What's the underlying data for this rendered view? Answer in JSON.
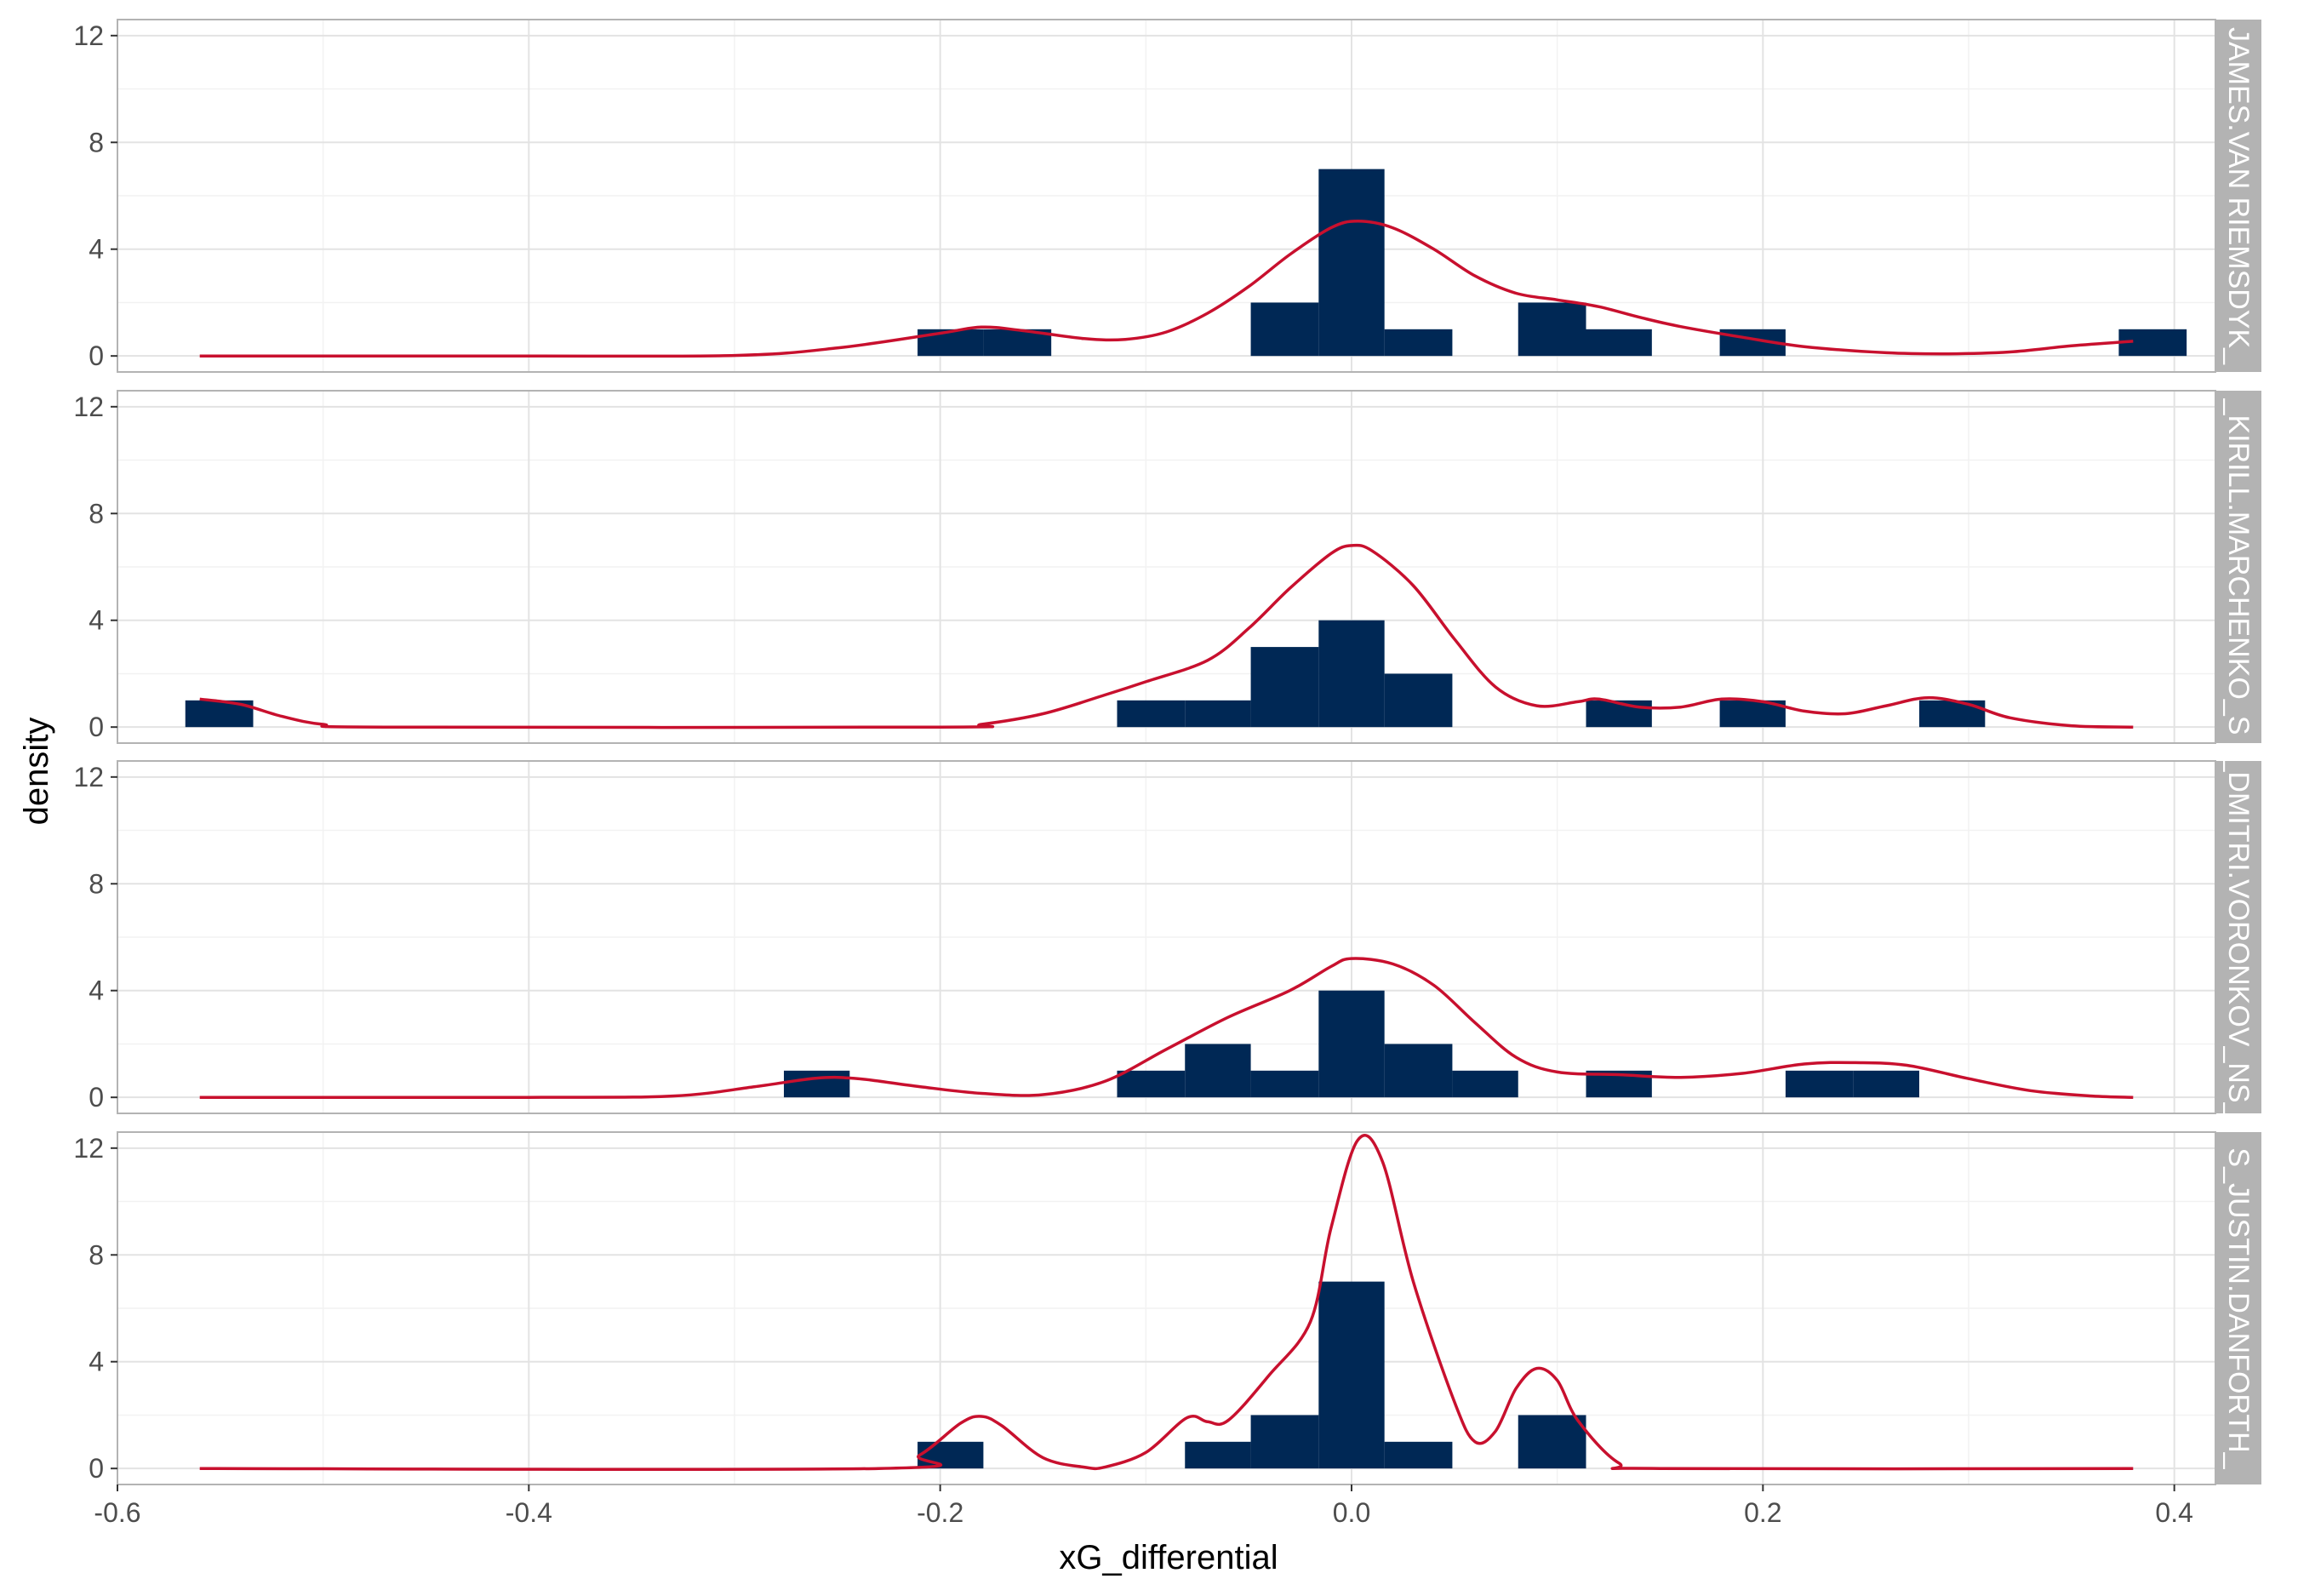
{
  "chart_data": {
    "type": "histogram",
    "xlabel": "xG_differential",
    "ylabel": "density",
    "xlim": [
      -0.6,
      0.42
    ],
    "ylim": [
      -0.6,
      12.6
    ],
    "x_ticks": [
      -0.6,
      -0.4,
      -0.2,
      0.0,
      0.2,
      0.4
    ],
    "x_tick_labels": [
      "-0.6",
      "-0.4",
      "-0.2",
      "0.0",
      "0.2",
      "0.4"
    ],
    "y_ticks": [
      0,
      4,
      8,
      12
    ],
    "y_tick_labels": [
      "0",
      "4",
      "8",
      "12"
    ],
    "bin_width": 0.0325,
    "bar_color": "#002855",
    "density_color": "#c8102e",
    "strip_color": "#b3b3b3",
    "grid": true,
    "panels": [
      {
        "label": "JAMES.VAN RIEMSDYK_",
        "bars": [
          {
            "x0": -0.211,
            "x1": -0.179,
            "y": 1
          },
          {
            "x0": -0.179,
            "x1": -0.146,
            "y": 1
          },
          {
            "x0": -0.049,
            "x1": -0.016,
            "y": 2
          },
          {
            "x0": -0.016,
            "x1": 0.016,
            "y": 7
          },
          {
            "x0": 0.016,
            "x1": 0.049,
            "y": 1
          },
          {
            "x0": 0.081,
            "x1": 0.114,
            "y": 2
          },
          {
            "x0": 0.114,
            "x1": 0.146,
            "y": 1
          },
          {
            "x0": 0.179,
            "x1": 0.211,
            "y": 1
          },
          {
            "x0": 0.373,
            "x1": 0.406,
            "y": 1
          }
        ],
        "density": [
          [
            -0.56,
            0
          ],
          [
            -0.4,
            0
          ],
          [
            -0.3,
            0.02
          ],
          [
            -0.25,
            0.3
          ],
          [
            -0.2,
            0.85
          ],
          [
            -0.18,
            1.08
          ],
          [
            -0.16,
            0.95
          ],
          [
            -0.13,
            0.65
          ],
          [
            -0.11,
            0.62
          ],
          [
            -0.09,
            0.9
          ],
          [
            -0.07,
            1.6
          ],
          [
            -0.05,
            2.6
          ],
          [
            -0.03,
            3.8
          ],
          [
            -0.01,
            4.8
          ],
          [
            0.003,
            5.05
          ],
          [
            0.02,
            4.8
          ],
          [
            0.04,
            4.0
          ],
          [
            0.06,
            3.0
          ],
          [
            0.08,
            2.35
          ],
          [
            0.1,
            2.1
          ],
          [
            0.12,
            1.85
          ],
          [
            0.14,
            1.45
          ],
          [
            0.16,
            1.1
          ],
          [
            0.19,
            0.7
          ],
          [
            0.22,
            0.35
          ],
          [
            0.26,
            0.12
          ],
          [
            0.29,
            0.08
          ],
          [
            0.32,
            0.15
          ],
          [
            0.35,
            0.38
          ],
          [
            0.38,
            0.55
          ]
        ]
      },
      {
        "label": "_KIRILL.MARCHENKO_S",
        "bars": [
          {
            "x0": -0.567,
            "x1": -0.534,
            "y": 1
          },
          {
            "x0": -0.114,
            "x1": -0.081,
            "y": 1
          },
          {
            "x0": -0.081,
            "x1": -0.049,
            "y": 1
          },
          {
            "x0": -0.049,
            "x1": -0.016,
            "y": 3
          },
          {
            "x0": -0.016,
            "x1": 0.016,
            "y": 4
          },
          {
            "x0": 0.016,
            "x1": 0.049,
            "y": 2
          },
          {
            "x0": 0.114,
            "x1": 0.146,
            "y": 1
          },
          {
            "x0": 0.179,
            "x1": 0.211,
            "y": 1
          },
          {
            "x0": 0.276,
            "x1": 0.308,
            "y": 1
          }
        ],
        "density": [
          [
            -0.56,
            1.05
          ],
          [
            -0.54,
            0.85
          ],
          [
            -0.52,
            0.4
          ],
          [
            -0.5,
            0.1
          ],
          [
            -0.47,
            0
          ],
          [
            -0.2,
            0
          ],
          [
            -0.18,
            0.1
          ],
          [
            -0.15,
            0.5
          ],
          [
            -0.12,
            1.2
          ],
          [
            -0.1,
            1.7
          ],
          [
            -0.07,
            2.5
          ],
          [
            -0.05,
            3.7
          ],
          [
            -0.03,
            5.2
          ],
          [
            -0.01,
            6.5
          ],
          [
            0.0,
            6.8
          ],
          [
            0.01,
            6.6
          ],
          [
            0.03,
            5.3
          ],
          [
            0.05,
            3.3
          ],
          [
            0.07,
            1.5
          ],
          [
            0.09,
            0.8
          ],
          [
            0.11,
            0.95
          ],
          [
            0.12,
            1.05
          ],
          [
            0.14,
            0.75
          ],
          [
            0.16,
            0.75
          ],
          [
            0.18,
            1.05
          ],
          [
            0.2,
            0.95
          ],
          [
            0.22,
            0.6
          ],
          [
            0.24,
            0.5
          ],
          [
            0.26,
            0.8
          ],
          [
            0.28,
            1.1
          ],
          [
            0.3,
            0.85
          ],
          [
            0.32,
            0.35
          ],
          [
            0.35,
            0.05
          ],
          [
            0.38,
            0
          ]
        ]
      },
      {
        "label": "_DMITRI.VORONKOV_NS_",
        "bars": [
          {
            "x0": -0.276,
            "x1": -0.244,
            "y": 1
          },
          {
            "x0": -0.114,
            "x1": -0.081,
            "y": 1
          },
          {
            "x0": -0.081,
            "x1": -0.049,
            "y": 2
          },
          {
            "x0": -0.049,
            "x1": -0.016,
            "y": 1
          },
          {
            "x0": -0.016,
            "x1": 0.016,
            "y": 4
          },
          {
            "x0": 0.016,
            "x1": 0.049,
            "y": 2
          },
          {
            "x0": 0.049,
            "x1": 0.081,
            "y": 1
          },
          {
            "x0": 0.114,
            "x1": 0.146,
            "y": 1
          },
          {
            "x0": 0.211,
            "x1": 0.244,
            "y": 1
          },
          {
            "x0": 0.244,
            "x1": 0.276,
            "y": 1
          }
        ],
        "density": [
          [
            -0.56,
            0
          ],
          [
            -0.4,
            0
          ],
          [
            -0.33,
            0.05
          ],
          [
            -0.29,
            0.4
          ],
          [
            -0.26,
            0.72
          ],
          [
            -0.24,
            0.7
          ],
          [
            -0.21,
            0.4
          ],
          [
            -0.18,
            0.15
          ],
          [
            -0.15,
            0.1
          ],
          [
            -0.12,
            0.6
          ],
          [
            -0.09,
            1.8
          ],
          [
            -0.06,
            3.0
          ],
          [
            -0.03,
            4.0
          ],
          [
            -0.01,
            4.9
          ],
          [
            0.0,
            5.2
          ],
          [
            0.02,
            5.0
          ],
          [
            0.04,
            4.2
          ],
          [
            0.06,
            2.8
          ],
          [
            0.08,
            1.5
          ],
          [
            0.1,
            0.95
          ],
          [
            0.13,
            0.85
          ],
          [
            0.16,
            0.75
          ],
          [
            0.19,
            0.9
          ],
          [
            0.22,
            1.25
          ],
          [
            0.245,
            1.3
          ],
          [
            0.27,
            1.2
          ],
          [
            0.3,
            0.7
          ],
          [
            0.33,
            0.25
          ],
          [
            0.36,
            0.05
          ],
          [
            0.38,
            0
          ]
        ]
      },
      {
        "label": "S_JUSTIN.DANFORTH_",
        "bars": [
          {
            "x0": -0.211,
            "x1": -0.179,
            "y": 1
          },
          {
            "x0": -0.081,
            "x1": -0.049,
            "y": 1
          },
          {
            "x0": -0.049,
            "x1": -0.016,
            "y": 2
          },
          {
            "x0": -0.016,
            "x1": 0.016,
            "y": 7
          },
          {
            "x0": 0.016,
            "x1": 0.049,
            "y": 1
          },
          {
            "x0": 0.081,
            "x1": 0.114,
            "y": 2
          }
        ],
        "density": [
          [
            -0.56,
            0
          ],
          [
            -0.23,
            0
          ],
          [
            -0.21,
            0.5
          ],
          [
            -0.19,
            1.7
          ],
          [
            -0.18,
            1.95
          ],
          [
            -0.17,
            1.6
          ],
          [
            -0.15,
            0.4
          ],
          [
            -0.13,
            0.05
          ],
          [
            -0.12,
            0.05
          ],
          [
            -0.1,
            0.6
          ],
          [
            -0.08,
            1.9
          ],
          [
            -0.07,
            1.75
          ],
          [
            -0.06,
            1.8
          ],
          [
            -0.04,
            3.5
          ],
          [
            -0.02,
            5.5
          ],
          [
            -0.01,
            9.0
          ],
          [
            0.003,
            12.3
          ],
          [
            0.015,
            11.5
          ],
          [
            0.03,
            7.0
          ],
          [
            0.05,
            2.5
          ],
          [
            0.06,
            1.0
          ],
          [
            0.07,
            1.4
          ],
          [
            0.08,
            3.0
          ],
          [
            0.09,
            3.75
          ],
          [
            0.1,
            3.3
          ],
          [
            0.11,
            1.8
          ],
          [
            0.13,
            0.2
          ],
          [
            0.15,
            0
          ],
          [
            0.38,
            0
          ]
        ]
      }
    ]
  }
}
